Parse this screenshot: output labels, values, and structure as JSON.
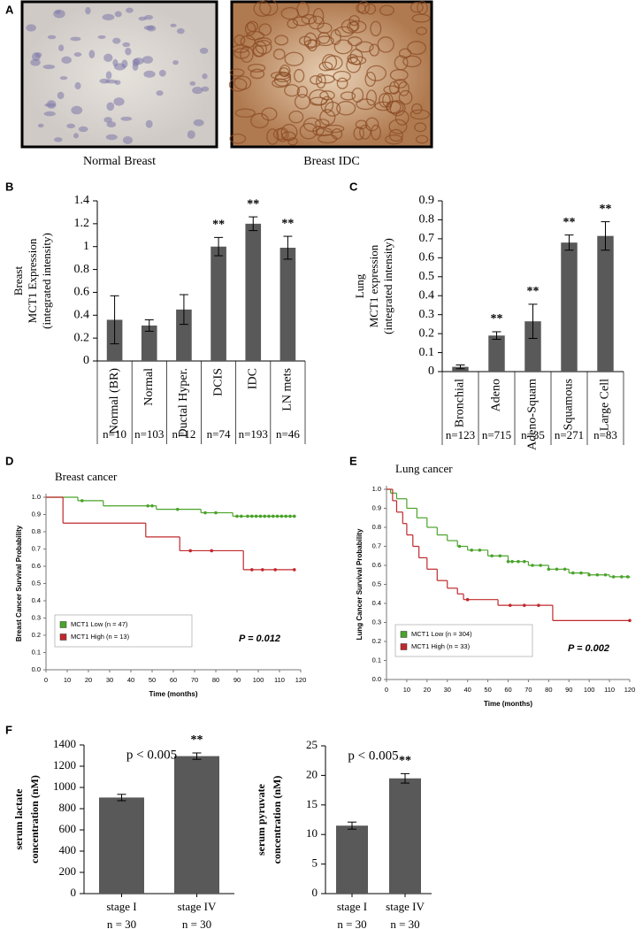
{
  "figure": {
    "panel_a": {
      "label": "A",
      "captions": [
        "Normal Breast",
        "Breast IDC"
      ]
    }
  },
  "chart_data": [
    {
      "type": "bar",
      "panel": "B",
      "y_label": [
        "Breast",
        "MCT1 Expression",
        "(integrated intensity)"
      ],
      "categories": [
        "Normal (BR)",
        "Normal",
        "Ductal Hyper.",
        "DCIS",
        "IDC",
        "LN mets"
      ],
      "values": [
        0.36,
        0.31,
        0.45,
        1.0,
        1.2,
        0.99
      ],
      "errors": [
        0.21,
        0.05,
        0.13,
        0.08,
        0.06,
        0.1
      ],
      "n_labels": [
        "n=10",
        "n=103",
        "n=12",
        "n=74",
        "n=193",
        "n=46"
      ],
      "significance": [
        null,
        null,
        null,
        "**",
        "**",
        "**"
      ],
      "color": "#595959",
      "ylim": [
        0,
        1.4
      ],
      "yticks": [
        0,
        0.2,
        0.4,
        0.6,
        0.8,
        1,
        1.2,
        1.4
      ]
    },
    {
      "type": "bar",
      "panel": "C",
      "y_label": [
        "Lung",
        "MCT1 expression",
        "(integrated intensity)"
      ],
      "categories": [
        "Bronchial",
        "Adeno",
        "Adeno-Squam",
        "Squamous",
        "Large Cell"
      ],
      "values": [
        0.025,
        0.19,
        0.265,
        0.68,
        0.715
      ],
      "errors": [
        0.01,
        0.02,
        0.09,
        0.04,
        0.075
      ],
      "n_labels": [
        "n=123",
        "n=715",
        "n=35",
        "n=271",
        "n=83"
      ],
      "significance": [
        null,
        "**",
        "**",
        "**",
        "**"
      ],
      "color": "#595959",
      "ylim": [
        0,
        0.9
      ],
      "yticks": [
        0,
        0.1,
        0.2,
        0.3,
        0.4,
        0.5,
        0.6,
        0.7,
        0.8,
        0.9
      ]
    },
    {
      "type": "step",
      "panel": "D",
      "title": "Breast cancer",
      "y_label": "Breast Cancer Survival Probability",
      "x_label": "Time (months)",
      "annotation": "P = 0.012",
      "series": [
        {
          "name": "MCT1 Low (n = 47)",
          "color": "#4aa32a",
          "x": [
            0,
            15,
            27,
            52,
            73,
            88,
            117
          ],
          "values": [
            1.0,
            0.98,
            0.95,
            0.93,
            0.91,
            0.89,
            0.89
          ],
          "censored_x": [
            17,
            48,
            50,
            62,
            75,
            80,
            90,
            92,
            95,
            97,
            99,
            101,
            103,
            105,
            107,
            109,
            111,
            113,
            115,
            117
          ]
        },
        {
          "name": "MCT1 High (n = 13)",
          "color": "#c0282d",
          "x": [
            0,
            8,
            47,
            63,
            93,
            117
          ],
          "values": [
            1.0,
            0.85,
            0.77,
            0.69,
            0.58,
            0.58
          ],
          "censored_x": [
            68,
            78,
            97,
            102,
            108,
            117
          ]
        }
      ],
      "xlim": [
        0,
        120
      ],
      "xticks": [
        0,
        10,
        20,
        30,
        40,
        50,
        60,
        70,
        80,
        90,
        100,
        110,
        120
      ],
      "ylim": [
        0,
        1.0
      ],
      "yticks": [
        {
          "value": 0,
          "label": "0.0"
        },
        0.1,
        0.2,
        0.3,
        0.4,
        0.5,
        0.6,
        0.7,
        0.8,
        0.9,
        {
          "value": 1,
          "label": "1.0"
        }
      ]
    },
    {
      "type": "step",
      "panel": "E",
      "title": "Lung cancer",
      "y_label": "Lung Cancer Survival Probability",
      "x_label": "Time (months)",
      "annotation": "P = 0.002",
      "series": [
        {
          "name": "MCT1 Low (n = 304)",
          "color": "#4aa32a",
          "x": [
            0,
            2,
            5,
            10,
            15,
            20,
            25,
            30,
            35,
            40,
            50,
            60,
            70,
            80,
            90,
            100,
            110,
            120
          ],
          "values": [
            1.0,
            0.98,
            0.95,
            0.9,
            0.85,
            0.8,
            0.76,
            0.73,
            0.7,
            0.68,
            0.65,
            0.62,
            0.6,
            0.58,
            0.56,
            0.55,
            0.54,
            0.535
          ],
          "censored_x": [
            36,
            42,
            46,
            52,
            56,
            60,
            62,
            65,
            68,
            72,
            76,
            80,
            84,
            88,
            92,
            96,
            100,
            104,
            108,
            112,
            116,
            119
          ]
        },
        {
          "name": "MCT1 High (n = 33)",
          "color": "#c0282d",
          "x": [
            0,
            3,
            5,
            8,
            10,
            13,
            16,
            20,
            25,
            30,
            35,
            38,
            55,
            82,
            120
          ],
          "values": [
            1.0,
            0.94,
            0.88,
            0.82,
            0.76,
            0.7,
            0.64,
            0.58,
            0.52,
            0.48,
            0.45,
            0.42,
            0.39,
            0.31,
            0.31
          ],
          "censored_x": [
            40,
            61,
            68,
            75,
            120
          ]
        }
      ],
      "xlim": [
        0,
        120
      ],
      "xticks": [
        0,
        10,
        20,
        30,
        40,
        50,
        60,
        70,
        80,
        90,
        100,
        110,
        120
      ],
      "ylim": [
        0,
        1.0
      ],
      "yticks": [
        {
          "value": 0,
          "label": "0.0"
        },
        0.1,
        0.2,
        0.3,
        0.4,
        0.5,
        0.6,
        0.7,
        0.8,
        0.9,
        {
          "value": 1,
          "label": "1.0"
        }
      ]
    },
    {
      "type": "bar",
      "panel": "F",
      "y_label": [
        "serum lactate",
        "concentration (nM)"
      ],
      "annotation": "p < 0.005",
      "categories": [
        "stage I",
        "stage IV"
      ],
      "values": [
        905,
        1295
      ],
      "errors": [
        30,
        30
      ],
      "n_labels": [
        "n = 30",
        "n = 30"
      ],
      "significance": [
        null,
        "**"
      ],
      "color": "#595959",
      "ylim": [
        0,
        1400
      ],
      "yticks": [
        0,
        200,
        400,
        600,
        800,
        1000,
        1200,
        1400
      ]
    },
    {
      "type": "bar",
      "y_label": [
        "serum pyruvate",
        "concentration (nM)"
      ],
      "annotation": "p < 0.005",
      "categories": [
        "stage I",
        "stage IV"
      ],
      "values": [
        11.5,
        19.5
      ],
      "errors": [
        0.6,
        0.8
      ],
      "n_labels": [
        "n = 30",
        "n = 30"
      ],
      "significance": [
        null,
        "**"
      ],
      "color": "#595959",
      "ylim": [
        0,
        25
      ],
      "yticks": [
        0,
        5,
        10,
        15,
        20,
        25
      ]
    }
  ]
}
